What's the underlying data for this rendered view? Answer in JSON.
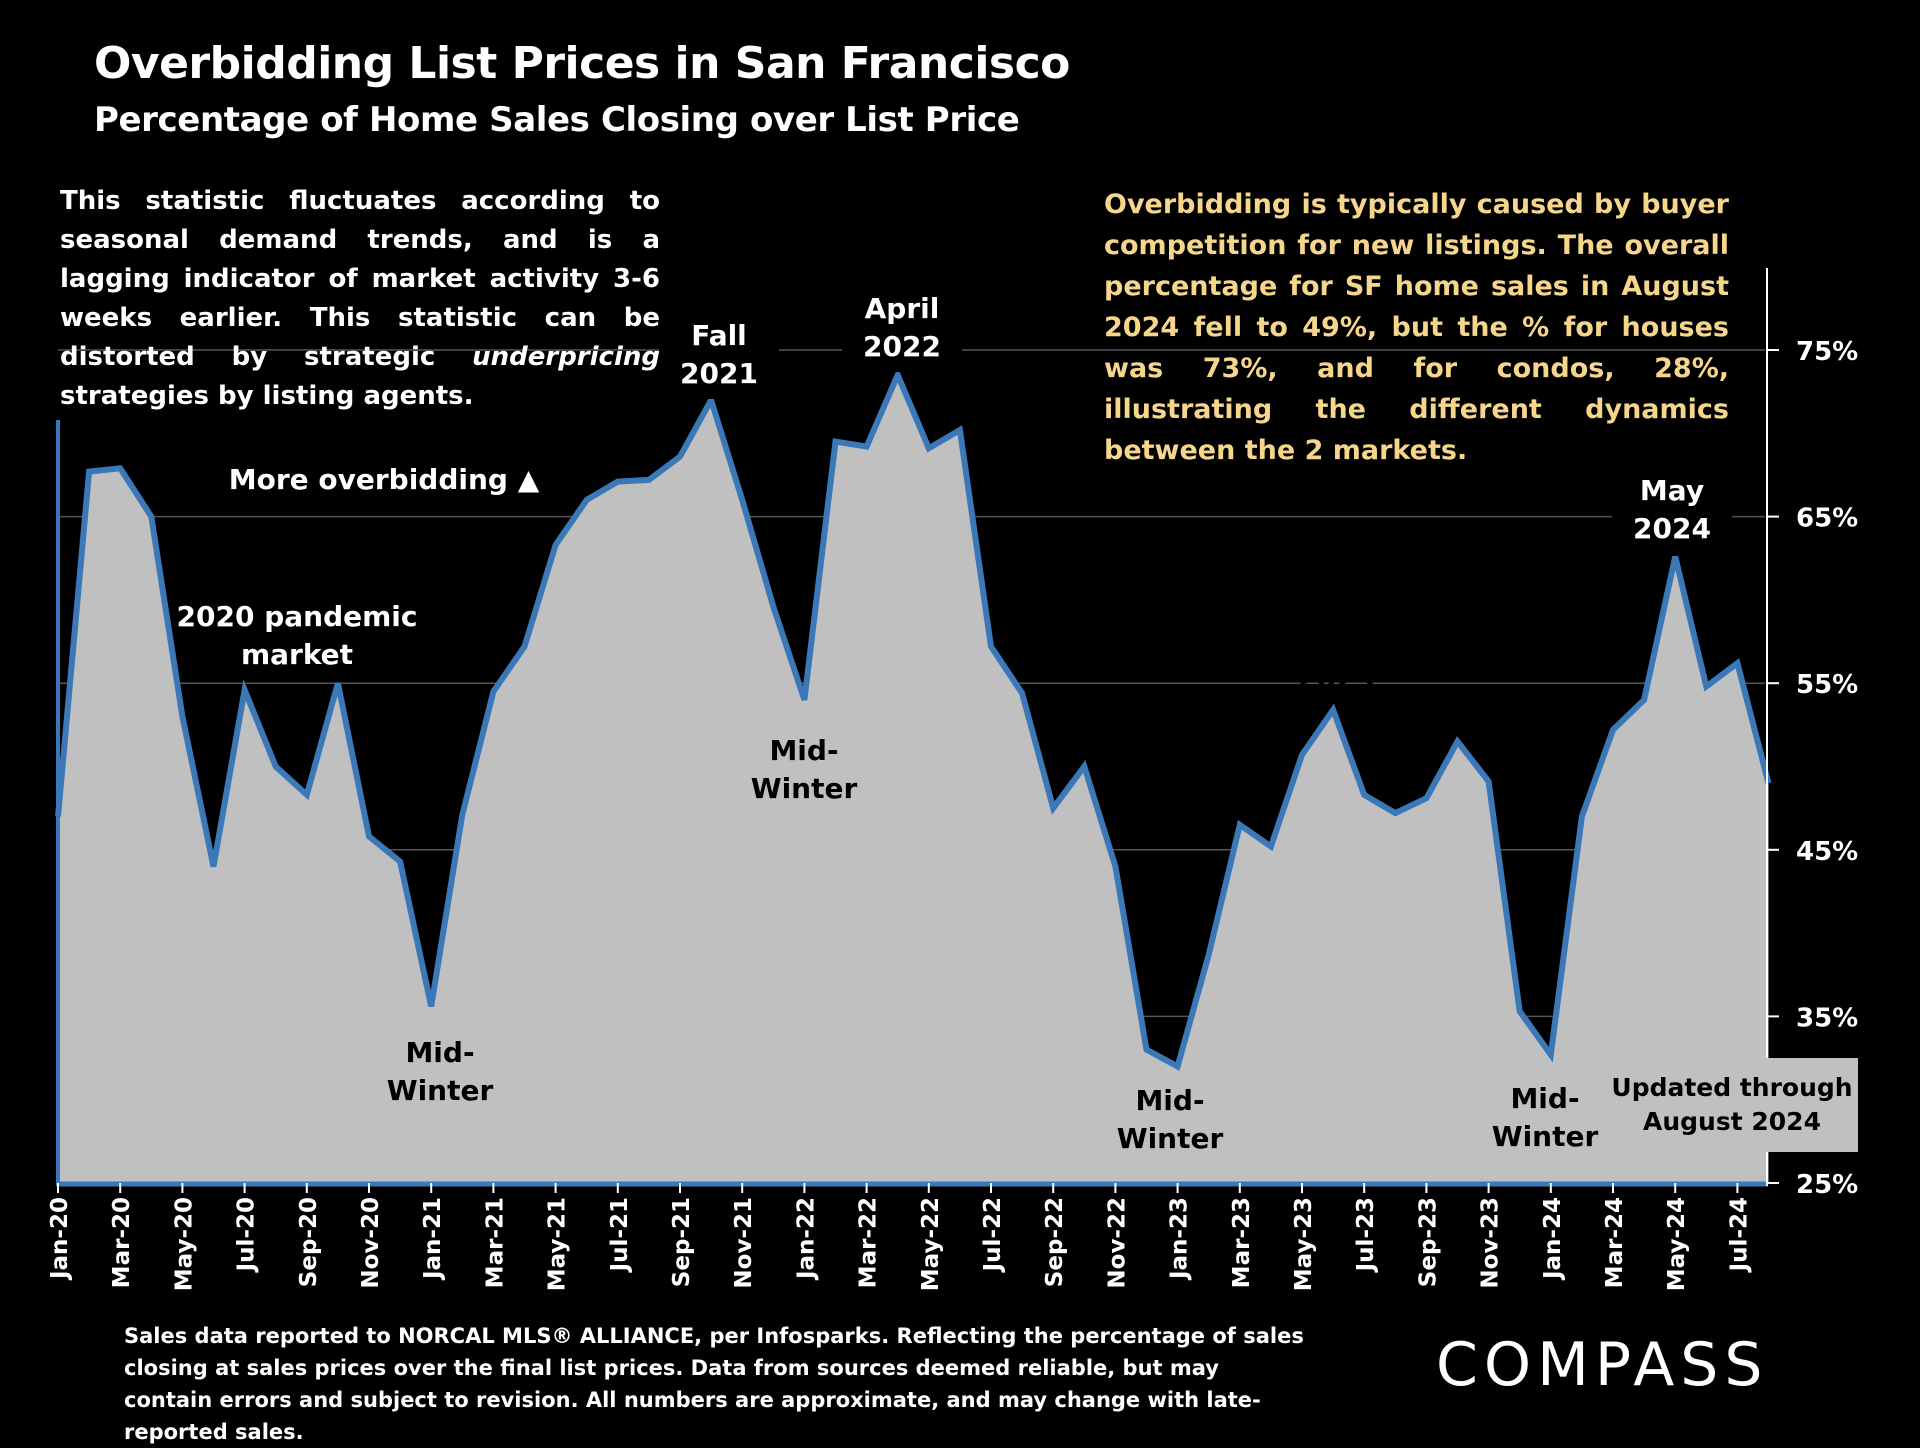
{
  "title": "Overbidding List Prices in San Francisco",
  "subtitle": "Percentage of Home Sales Closing over List Price",
  "note_left": {
    "part1": "This statistic fluctuates according to seasonal demand trends, and is a lagging indicator of market activity 3-6 weeks earlier. This statistic can be distorted by strategic ",
    "emphasis": "underpricing",
    "part2": " strategies by listing agents."
  },
  "note_right": "Overbidding is typically caused by buyer competition for new listings. The overall percentage for SF home sales in August 2024 fell to 49%, but the % for houses was 73%, and for condos, 28%, illustrating the different dynamics between the 2 markets.",
  "footer": "Sales data reported to NORCAL MLS® ALLIANCE, per Infosparks. Reflecting the percentage of sales closing at sales prices over the final list prices. Data from sources deemed reliable, but may contain errors and subject to revision. All numbers are approximate, and may change with late-reported sales.",
  "logo_text": "COMPASS",
  "colors": {
    "line": "#3b78b8",
    "area": "#c0c0c0",
    "background": "#000000",
    "note_right": "#f5d68a",
    "grid": "#555555"
  },
  "chart_data": {
    "type": "area",
    "title": "Overbidding List Prices in San Francisco",
    "subtitle": "Percentage of Home Sales Closing over List Price",
    "xlabel": "",
    "ylabel": "",
    "ylim": [
      25,
      80
    ],
    "y_ticks": [
      25,
      35,
      45,
      55,
      65,
      75
    ],
    "y_tick_labels": [
      "25%",
      "35%",
      "45%",
      "55%",
      "65%",
      "75%"
    ],
    "x_tick_labels": [
      "Jan-20",
      "Mar-20",
      "May-20",
      "Jul-20",
      "Sep-20",
      "Nov-20",
      "Jan-21",
      "Mar-21",
      "May-21",
      "Jul-21",
      "Sep-21",
      "Nov-21",
      "Jan-22",
      "Mar-22",
      "May-22",
      "Jul-22",
      "Sep-22",
      "Nov-22",
      "Jan-23",
      "Mar-23",
      "May-23",
      "Jul-23",
      "Sep-23",
      "Nov-23",
      "Jan-24",
      "Mar-24",
      "May-24",
      "Jul-24"
    ],
    "months": [
      "Jan-20",
      "Feb-20",
      "Mar-20",
      "Apr-20",
      "May-20",
      "Jun-20",
      "Jul-20",
      "Aug-20",
      "Sep-20",
      "Oct-20",
      "Nov-20",
      "Dec-20",
      "Jan-21",
      "Feb-21",
      "Mar-21",
      "Apr-21",
      "May-21",
      "Jun-21",
      "Jul-21",
      "Aug-21",
      "Sep-21",
      "Oct-21",
      "Nov-21",
      "Dec-21",
      "Jan-22",
      "Feb-22",
      "Mar-22",
      "Apr-22",
      "May-22",
      "Jun-22",
      "Jul-22",
      "Aug-22",
      "Sep-22",
      "Oct-22",
      "Nov-22",
      "Dec-22",
      "Jan-23",
      "Feb-23",
      "Mar-23",
      "Apr-23",
      "May-23",
      "Jun-23",
      "Jul-23",
      "Aug-23",
      "Sep-23",
      "Oct-23",
      "Nov-23",
      "Dec-23",
      "Jan-24",
      "Feb-24",
      "Mar-24",
      "Apr-24",
      "May-24",
      "Jun-24",
      "Jul-24",
      "Aug-24"
    ],
    "series": [
      {
        "name": "% of home sales closing over list price",
        "values": [
          47,
          67.7,
          67.9,
          65,
          53,
          44,
          54.6,
          50,
          48.3,
          55,
          45.8,
          44.3,
          35.6,
          47.1,
          54.5,
          57.2,
          63.3,
          66,
          67.1,
          67.2,
          68.6,
          72,
          66,
          59.6,
          54,
          69.5,
          69.2,
          73.5,
          69.1,
          70.2,
          57.2,
          54.4,
          47.5,
          50,
          44,
          33,
          32,
          38.7,
          46.5,
          45.2,
          50.7,
          53.4,
          48.3,
          47.2,
          48.1,
          51.5,
          49.1,
          35.3,
          32.7,
          47,
          52.2,
          54,
          62.6,
          54.8,
          56.2,
          49
        ]
      }
    ],
    "annotations": [
      {
        "id": "pandemic",
        "lines": [
          "2020 pandemic",
          "market"
        ]
      },
      {
        "id": "more_overbidding",
        "lines": [
          "More overbidding ▲"
        ]
      },
      {
        "id": "fall2021",
        "lines": [
          "Fall",
          "2021"
        ]
      },
      {
        "id": "april2022",
        "lines": [
          "April",
          "2022"
        ]
      },
      {
        "id": "mw_jan21",
        "lines": [
          "Mid-",
          "Winter"
        ]
      },
      {
        "id": "mw_jan22",
        "lines": [
          "Mid-",
          "Winter"
        ]
      },
      {
        "id": "mw_jan23",
        "lines": [
          "Mid-",
          "Winter"
        ]
      },
      {
        "id": "mw_jan24",
        "lines": [
          "Mid-",
          "Winter"
        ]
      },
      {
        "id": "june2023",
        "lines": [
          "June",
          "2023"
        ]
      },
      {
        "id": "may2024",
        "lines": [
          "May",
          "2024"
        ]
      },
      {
        "id": "updated",
        "lines": [
          "Updated through",
          "August 2024"
        ]
      }
    ]
  }
}
